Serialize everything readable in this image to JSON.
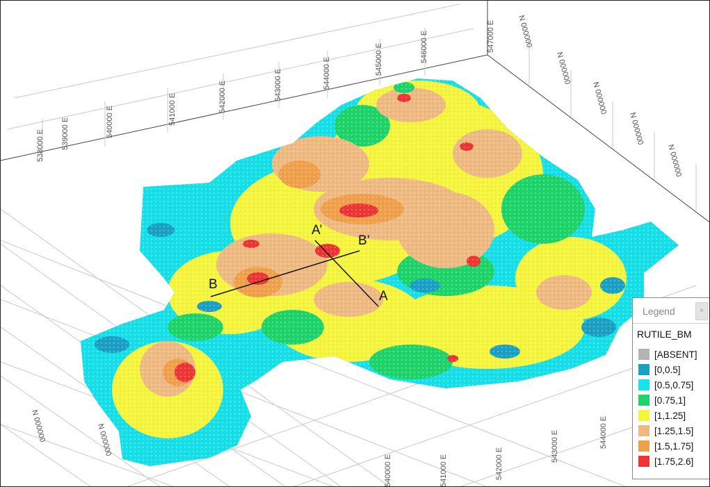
{
  "viewer": {
    "axis_ticks_top": [
      "538000 E",
      "539000 E",
      "540000 E",
      "541000 E",
      "542000 E",
      "543000 E",
      "544000 E",
      "545000 E",
      "546000 E",
      "547000 E"
    ],
    "axis_ticks_bottom": [
      "540000 E",
      "541000 E",
      "542000 E",
      "543000 E",
      "544000 E"
    ],
    "axis_ticks_north": [
      "N 000000",
      "N 000000",
      "N 000000",
      "N 000000",
      "N 000000",
      "N 000000",
      "N 000000"
    ]
  },
  "sections": {
    "A": "A",
    "A_prime": "A’",
    "B": "B",
    "B_prime": "B’"
  },
  "legend": {
    "title": "Legend",
    "close": "×",
    "layer": "RUTILE_BM",
    "classes": [
      {
        "label": "[ABSENT]",
        "color": "#b3b3b3"
      },
      {
        "label": "[0,0.5]",
        "color": "#1aa0c4"
      },
      {
        "label": "[0.5,0.75]",
        "color": "#17e3ec"
      },
      {
        "label": "[0.75,1]",
        "color": "#1ed46a"
      },
      {
        "label": "[1,1.25]",
        "color": "#f4f53c"
      },
      {
        "label": "[1.25,1.5]",
        "color": "#efba82"
      },
      {
        "label": "[1.5,1.75]",
        "color": "#f0a04a"
      },
      {
        "label": "[1.75,2.6]",
        "color": "#ee3434"
      }
    ]
  }
}
